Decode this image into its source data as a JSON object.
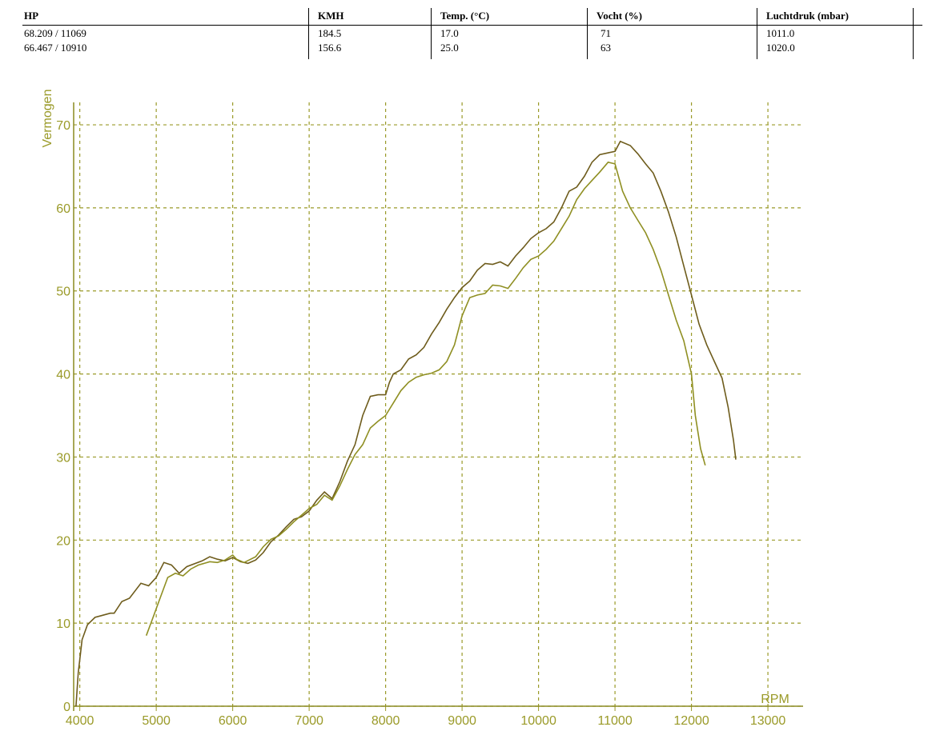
{
  "table": {
    "header": [
      "HP",
      "KMH",
      "Temp. (°C)",
      "Vocht (%)",
      "Luchtdruk (mbar)"
    ],
    "rows": [
      [
        "68.209 / 11069",
        "184.5",
        "17.0",
        "71",
        "1011.0"
      ],
      [
        "66.467 / 10910",
        "156.6",
        "25.0",
        "63",
        "1020.0"
      ]
    ]
  },
  "chart_data": {
    "type": "line",
    "ylabel": "Vermogen",
    "xlabel": "RPM",
    "xlim": [
      3920,
      13460
    ],
    "ylim": [
      0,
      72.7
    ],
    "xticks": [
      4000,
      5000,
      6000,
      7000,
      8000,
      9000,
      10000,
      11000,
      12000,
      13000
    ],
    "yticks": [
      0,
      10,
      20,
      30,
      40,
      50,
      60,
      70
    ],
    "grid": true,
    "series": [
      {
        "color": "#6e5c1c",
        "x": [
          3950,
          3980,
          4030,
          4100,
          4200,
          4400,
          4450,
          4550,
          4650,
          4800,
          4900,
          5000,
          5100,
          5200,
          5300,
          5400,
          5600,
          5700,
          5800,
          5900,
          6000,
          6100,
          6200,
          6300,
          6400,
          6500,
          6600,
          6700,
          6800,
          6900,
          7000,
          7100,
          7200,
          7300,
          7400,
          7500,
          7600,
          7700,
          7800,
          7900,
          8000,
          8050,
          8100,
          8200,
          8300,
          8400,
          8500,
          8600,
          8700,
          8800,
          8900,
          9000,
          9100,
          9200,
          9300,
          9400,
          9500,
          9600,
          9700,
          9800,
          9900,
          10000,
          10100,
          10200,
          10300,
          10400,
          10500,
          10600,
          10700,
          10800,
          10900,
          11000,
          11069,
          11200,
          11300,
          11400,
          11500,
          11600,
          11700,
          11800,
          11900,
          12000,
          12100,
          12200,
          12300,
          12400,
          12480,
          12550,
          12580
        ],
        "values": [
          0,
          4,
          8,
          9.8,
          10.7,
          11.2,
          11.2,
          12.6,
          13,
          14.8,
          14.5,
          15.5,
          17.3,
          17,
          16,
          16.8,
          17.5,
          18,
          17.7,
          17.5,
          17.9,
          17.4,
          17.2,
          17.6,
          18.5,
          19.8,
          20.6,
          21.6,
          22.5,
          22.8,
          23.5,
          24.8,
          25.8,
          25,
          27,
          29.5,
          31.5,
          35,
          37.3,
          37.5,
          37.5,
          39,
          40,
          40.5,
          41.8,
          42.3,
          43.2,
          44.8,
          46.2,
          47.8,
          49.2,
          50.4,
          51.2,
          52.5,
          53.3,
          53.2,
          53.5,
          53,
          54.2,
          55.2,
          56.3,
          57,
          57.5,
          58.3,
          60,
          62,
          62.5,
          63.8,
          65.5,
          66.4,
          66.6,
          66.8,
          68,
          67.5,
          66.5,
          65.3,
          64.2,
          62,
          59.5,
          56.5,
          53,
          49.5,
          46,
          43.5,
          41.5,
          39.5,
          36,
          32,
          29.7
        ]
      },
      {
        "color": "#8f8f22",
        "x": [
          4870,
          4950,
          5050,
          5150,
          5250,
          5350,
          5450,
          5550,
          5700,
          5800,
          5900,
          6000,
          6050,
          6150,
          6300,
          6400,
          6500,
          6600,
          6700,
          6800,
          6900,
          7000,
          7100,
          7200,
          7300,
          7400,
          7500,
          7600,
          7700,
          7800,
          7900,
          8000,
          8100,
          8200,
          8300,
          8400,
          8500,
          8600,
          8700,
          8800,
          8900,
          9000,
          9100,
          9200,
          9300,
          9400,
          9500,
          9600,
          9700,
          9800,
          9900,
          10000,
          10100,
          10200,
          10300,
          10400,
          10500,
          10600,
          10700,
          10800,
          10910,
          11000,
          11100,
          11200,
          11300,
          11400,
          11500,
          11600,
          11700,
          11800,
          11900,
          12000,
          12050,
          12120,
          12180
        ],
        "values": [
          8.5,
          10.5,
          13,
          15.5,
          16,
          15.7,
          16.5,
          17,
          17.4,
          17.3,
          17.6,
          18.2,
          17.7,
          17.3,
          18,
          19.2,
          20.1,
          20.5,
          21.3,
          22.2,
          23,
          23.8,
          24.3,
          25.4,
          24.8,
          26.5,
          28.5,
          30.3,
          31.5,
          33.5,
          34.3,
          35,
          36.5,
          38,
          39,
          39.6,
          39.9,
          40.1,
          40.5,
          41.5,
          43.5,
          47,
          49.2,
          49.5,
          49.7,
          50.7,
          50.6,
          50.3,
          51.5,
          52.8,
          53.8,
          54.2,
          55,
          56,
          57.5,
          59,
          61,
          62.3,
          63.3,
          64.3,
          65.5,
          65.3,
          62,
          60,
          58.5,
          57,
          55,
          52.5,
          49.5,
          46.5,
          44,
          40,
          35,
          31,
          29
        ]
      }
    ]
  }
}
